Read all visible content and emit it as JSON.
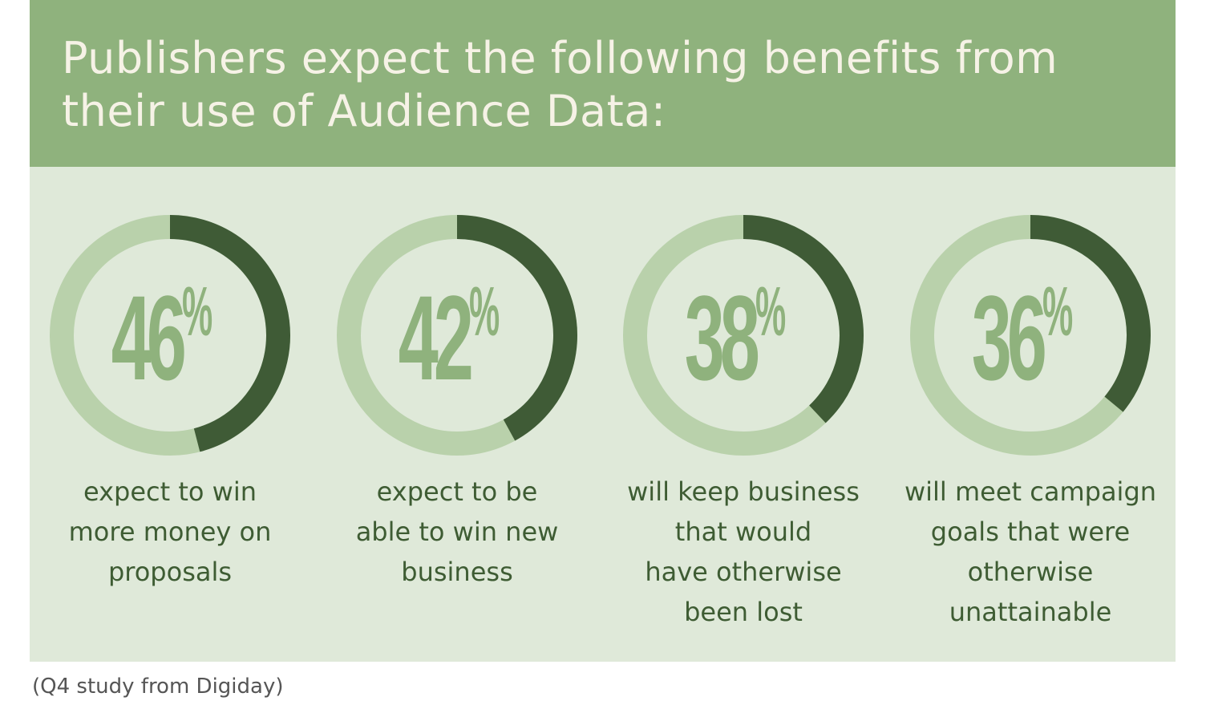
{
  "title": "Publishers expect the following benefits from their use of Audience Data:",
  "source": "(Q4 study from Digiday)",
  "colors": {
    "header_bg": "#8fb27d",
    "panel_bg": "#dfe9d9",
    "ring_track": "#b9d1ab",
    "ring_fill": "#3f5b36",
    "percent_text": "#8fb27d",
    "caption_text": "#3e5c33",
    "title_text": "#f6f2e6"
  },
  "chart_data": {
    "type": "pie",
    "subtype": "donut-set",
    "title": "Publishers expect the following benefits from their use of Audience Data:",
    "items": [
      {
        "value": 46,
        "label": "46",
        "suffix": "%",
        "caption": "expect to win\nmore money on\nproposals"
      },
      {
        "value": 42,
        "label": "42",
        "suffix": "%",
        "caption": "expect to be\nable to win new\nbusiness"
      },
      {
        "value": 38,
        "label": "38",
        "suffix": "%",
        "caption": "will keep business\nthat would\nhave otherwise\nbeen lost"
      },
      {
        "value": 36,
        "label": "36",
        "suffix": "%",
        "caption": "will meet campaign\ngoals that were\notherwise\nunattainable"
      }
    ]
  }
}
